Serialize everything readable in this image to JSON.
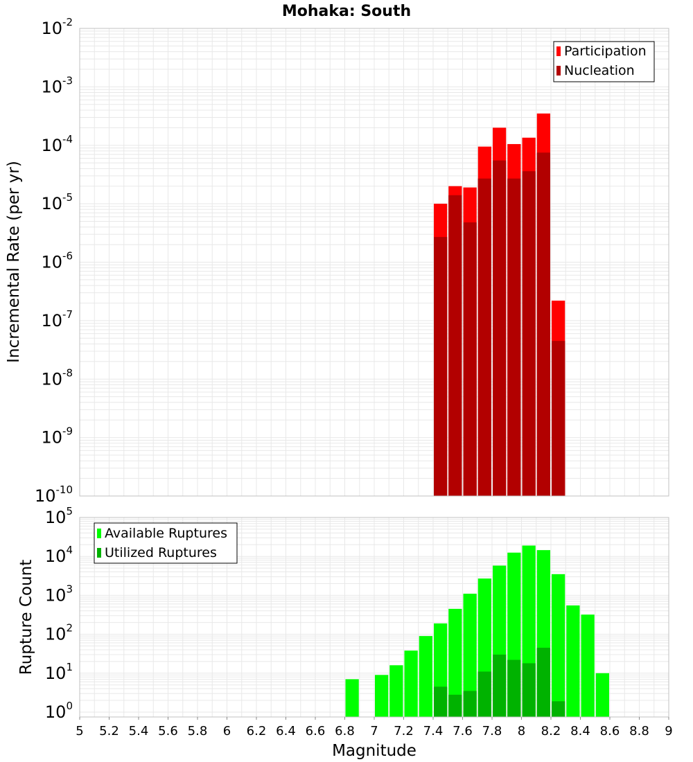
{
  "title": "Mohaka: South",
  "colors": {
    "participation": "#ff0000",
    "nucleation": "#b20000",
    "available": "#00ff00",
    "utilized": "#00b200",
    "grid": "#e8e8e8",
    "frame": "#c0c0c0"
  },
  "chart_data": [
    {
      "type": "bar",
      "title": "Mohaka: South",
      "xlabel": "",
      "ylabel": "Incremental Rate (per yr)",
      "yscale": "log",
      "ylim": [
        1e-10,
        0.01
      ],
      "xlim": [
        5,
        9
      ],
      "grid": true,
      "legend_position": "top-right",
      "bin_width": 0.1,
      "series": [
        {
          "name": "Participation",
          "x": [
            7.45,
            7.55,
            7.65,
            7.75,
            7.85,
            7.95,
            8.05,
            8.15,
            8.25
          ],
          "values": [
            1e-05,
            2e-05,
            1.9e-05,
            9.5e-05,
            0.0002,
            0.000105,
            0.000135,
            0.00035,
            2.2e-07
          ]
        },
        {
          "name": "Nucleation",
          "x": [
            7.45,
            7.55,
            7.65,
            7.75,
            7.85,
            7.95,
            8.05,
            8.15,
            8.25
          ],
          "values": [
            2.7e-06,
            1.4e-05,
            4.8e-06,
            2.7e-05,
            5.5e-05,
            2.7e-05,
            3.6e-05,
            7.5e-05,
            4.5e-08
          ]
        }
      ]
    },
    {
      "type": "bar",
      "title": "",
      "xlabel": "Magnitude",
      "ylabel": "Rupture Count",
      "yscale": "log",
      "ylim": [
        0.75,
        100000
      ],
      "xlim": [
        5,
        9
      ],
      "grid": true,
      "legend_position": "top-left",
      "bin_width": 0.1,
      "series": [
        {
          "name": "Available Ruptures",
          "x": [
            6.85,
            7.05,
            7.15,
            7.25,
            7.35,
            7.45,
            7.55,
            7.65,
            7.75,
            7.85,
            7.95,
            8.05,
            8.15,
            8.25,
            8.35,
            8.45,
            8.55
          ],
          "values": [
            7,
            9,
            16,
            38,
            90,
            190,
            450,
            1100,
            2700,
            5800,
            12500,
            19000,
            14500,
            3500,
            550,
            320,
            10
          ]
        },
        {
          "name": "Utilized Ruptures",
          "x": [
            7.45,
            7.55,
            7.65,
            7.75,
            7.85,
            7.95,
            8.05,
            8.15,
            8.25
          ],
          "values": [
            4.5,
            2.8,
            3.5,
            11,
            30,
            22,
            18,
            45,
            1.9
          ]
        }
      ]
    }
  ],
  "axes": {
    "x_ticks": [
      "5",
      "5.2",
      "5.4",
      "5.6",
      "5.8",
      "6",
      "6.2",
      "6.4",
      "6.6",
      "6.8",
      "7",
      "7.2",
      "7.4",
      "7.6",
      "7.8",
      "8",
      "8.2",
      "8.4",
      "8.6",
      "8.8",
      "9"
    ],
    "top_y_exponents": [
      "-2",
      "-3",
      "-4",
      "-5",
      "-6",
      "-7",
      "-8",
      "-9",
      "-10"
    ],
    "bottom_y_exponents": [
      "5",
      "4",
      "3",
      "2",
      "1",
      "0"
    ]
  }
}
